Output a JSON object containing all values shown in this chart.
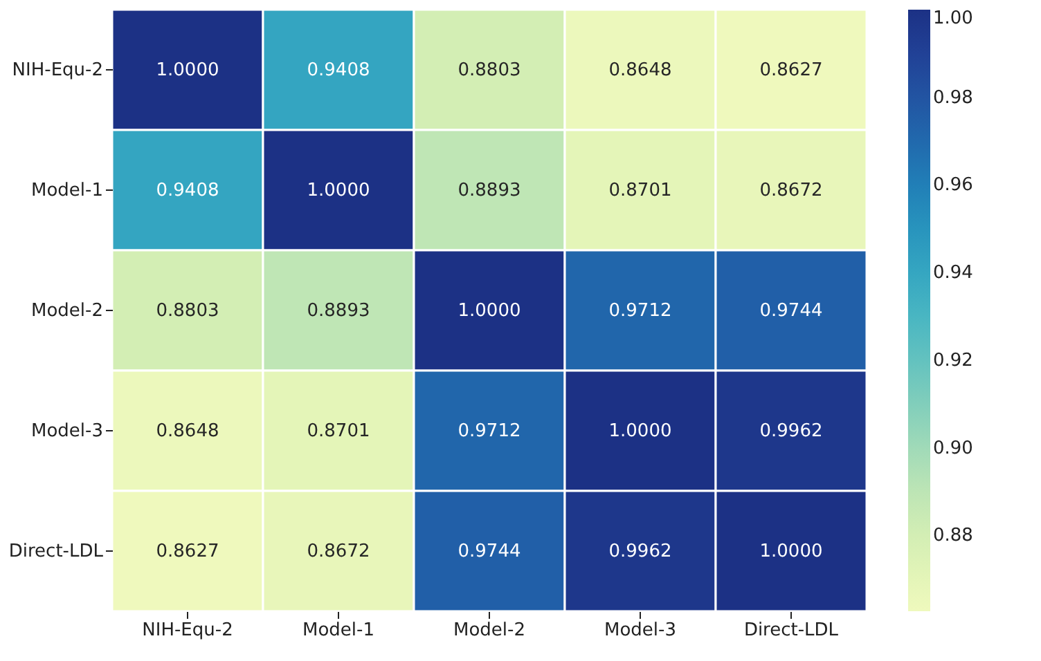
{
  "chart_data": {
    "type": "heatmap",
    "categories": [
      "NIH-Equ-2",
      "Model-1",
      "Model-2",
      "Model-3",
      "Direct-LDL"
    ],
    "y_categories": [
      "NIH-Equ-2",
      "Model-1",
      "Model-2",
      "Model-3",
      "Direct-LDL"
    ],
    "cells": [
      [
        1.0,
        0.9408,
        0.8803,
        0.8648,
        0.8627
      ],
      [
        0.9408,
        1.0,
        0.8893,
        0.8701,
        0.8672
      ],
      [
        0.8803,
        0.8893,
        1.0,
        0.9712,
        0.9744
      ],
      [
        0.8648,
        0.8701,
        0.9712,
        1.0,
        0.9962
      ],
      [
        0.8627,
        0.8672,
        0.9744,
        0.9962,
        1.0
      ]
    ],
    "cell_labels": [
      [
        "1.0000",
        "0.9408",
        "0.8803",
        "0.8648",
        "0.8627"
      ],
      [
        "0.9408",
        "1.0000",
        "0.8893",
        "0.8701",
        "0.8672"
      ],
      [
        "0.8803",
        "0.8893",
        "1.0000",
        "0.9712",
        "0.9744"
      ],
      [
        "0.8648",
        "0.8701",
        "0.9712",
        "1.0000",
        "0.9962"
      ],
      [
        "0.8627",
        "0.8672",
        "0.9744",
        "0.9962",
        "1.0000"
      ]
    ],
    "clim": [
      0.8627,
      1.0
    ],
    "cticks": [
      0.88,
      {
        "value": 0.9,
        "label": "0.90"
      },
      0.92,
      0.94,
      0.96,
      0.98,
      {
        "value": 1,
        "label": "1.00"
      }
    ]
  }
}
